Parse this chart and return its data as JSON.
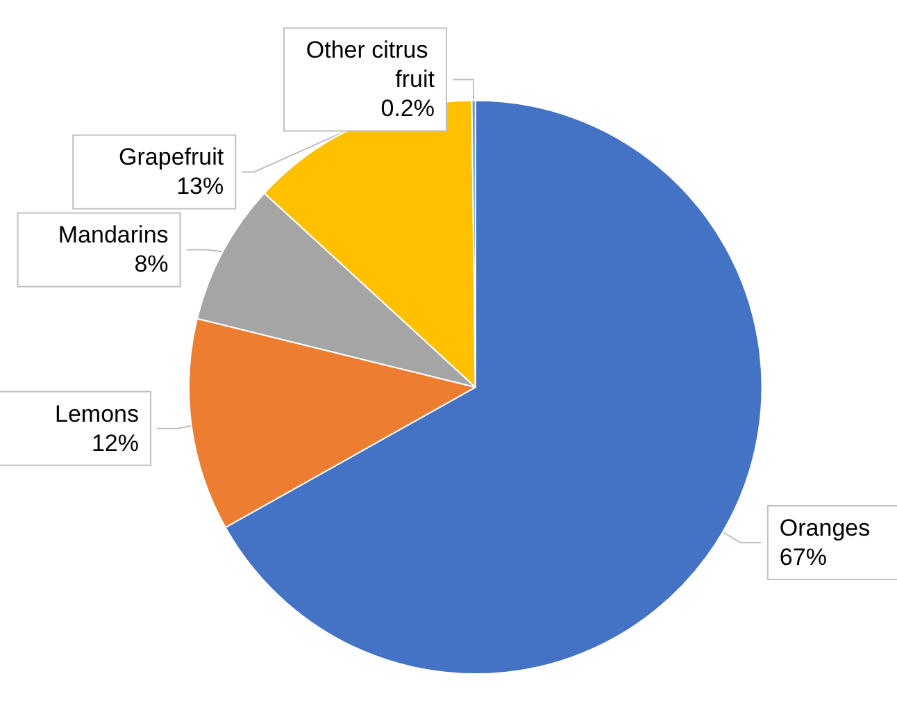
{
  "chart_data": {
    "type": "pie",
    "categories": [
      "Oranges",
      "Lemons",
      "Mandarins",
      "Grapefruit",
      "Other citrus fruit"
    ],
    "values": [
      67,
      12,
      8,
      13,
      0.2
    ],
    "colors": [
      "#4472c4",
      "#ed7d31",
      "#a5a5a5",
      "#ffc000",
      "#5b9bd5"
    ],
    "value_labels": [
      "67%",
      "12%",
      "8%",
      "13%",
      "0.2%"
    ]
  }
}
